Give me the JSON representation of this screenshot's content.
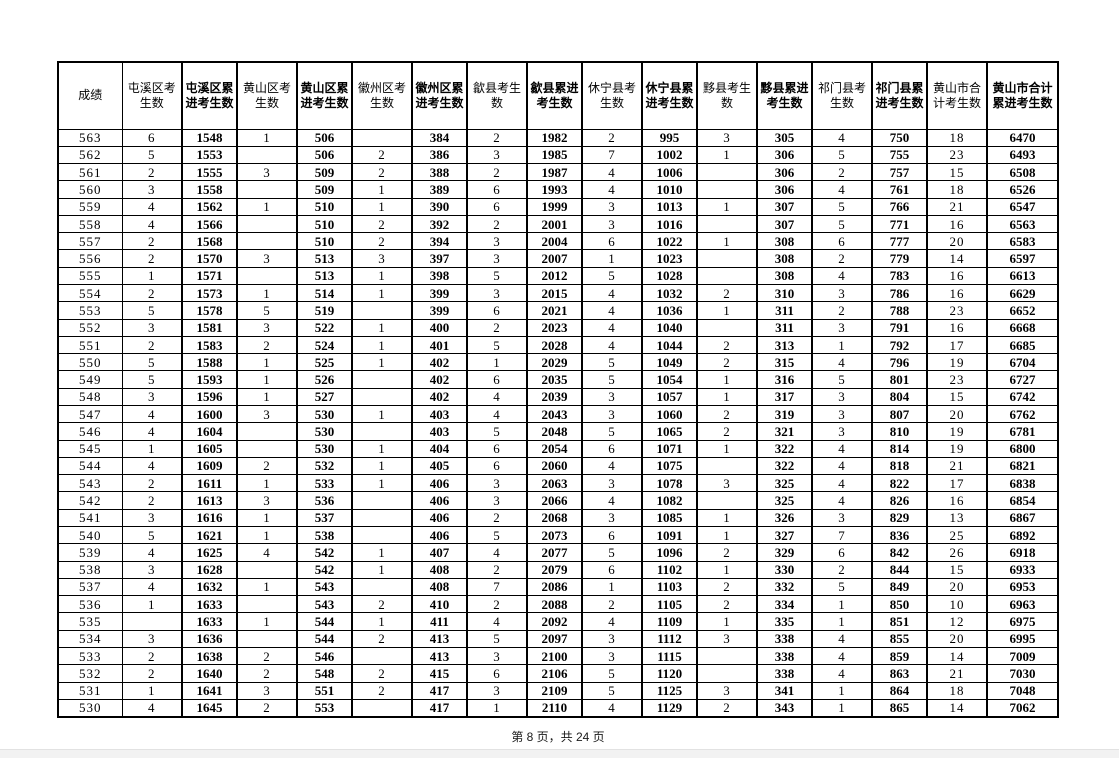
{
  "document": {
    "footer": "第 8 页，共 24 页"
  },
  "colors": {
    "page_background": "#ffffff",
    "table_border": "#000000",
    "text": "#000000",
    "bottom_strip": "#f2f2f2"
  },
  "table": {
    "columns": [
      {
        "label": "成绩",
        "emphasis": false
      },
      {
        "label": "屯溪区考生数",
        "emphasis": false
      },
      {
        "label": "屯溪区累进考生数",
        "emphasis": true
      },
      {
        "label": "黄山区考生数",
        "emphasis": false
      },
      {
        "label": "黄山区累进考生数",
        "emphasis": true
      },
      {
        "label": "徽州区考生数",
        "emphasis": false
      },
      {
        "label": "徽州区累进考生数",
        "emphasis": true
      },
      {
        "label": "歙县考生数",
        "emphasis": false
      },
      {
        "label": "歙县累进考生数",
        "emphasis": true
      },
      {
        "label": "休宁县考生数",
        "emphasis": false
      },
      {
        "label": "休宁县累进考生数",
        "emphasis": true
      },
      {
        "label": "黟县考生数",
        "emphasis": false
      },
      {
        "label": "黟县累进考生数",
        "emphasis": true
      },
      {
        "label": "祁门县考生数",
        "emphasis": false
      },
      {
        "label": "祁门县累进考生数",
        "emphasis": true
      },
      {
        "label": "黄山市合计考生数",
        "emphasis": false
      },
      {
        "label": "黄山市合计累进考生数",
        "emphasis": true
      }
    ],
    "rows": [
      [
        563,
        6,
        1548,
        1,
        506,
        "",
        384,
        2,
        1982,
        2,
        995,
        3,
        305,
        4,
        750,
        18,
        6470
      ],
      [
        562,
        5,
        1553,
        "",
        506,
        2,
        386,
        3,
        1985,
        7,
        1002,
        1,
        306,
        5,
        755,
        23,
        6493
      ],
      [
        561,
        2,
        1555,
        3,
        509,
        2,
        388,
        2,
        1987,
        4,
        1006,
        "",
        306,
        2,
        757,
        15,
        6508
      ],
      [
        560,
        3,
        1558,
        "",
        509,
        1,
        389,
        6,
        1993,
        4,
        1010,
        "",
        306,
        4,
        761,
        18,
        6526
      ],
      [
        559,
        4,
        1562,
        1,
        510,
        1,
        390,
        6,
        1999,
        3,
        1013,
        1,
        307,
        5,
        766,
        21,
        6547
      ],
      [
        558,
        4,
        1566,
        "",
        510,
        2,
        392,
        2,
        2001,
        3,
        1016,
        "",
        307,
        5,
        771,
        16,
        6563
      ],
      [
        557,
        2,
        1568,
        "",
        510,
        2,
        394,
        3,
        2004,
        6,
        1022,
        1,
        308,
        6,
        777,
        20,
        6583
      ],
      [
        556,
        2,
        1570,
        3,
        513,
        3,
        397,
        3,
        2007,
        1,
        1023,
        "",
        308,
        2,
        779,
        14,
        6597
      ],
      [
        555,
        1,
        1571,
        "",
        513,
        1,
        398,
        5,
        2012,
        5,
        1028,
        "",
        308,
        4,
        783,
        16,
        6613
      ],
      [
        554,
        2,
        1573,
        1,
        514,
        1,
        399,
        3,
        2015,
        4,
        1032,
        2,
        310,
        3,
        786,
        16,
        6629
      ],
      [
        553,
        5,
        1578,
        5,
        519,
        "",
        399,
        6,
        2021,
        4,
        1036,
        1,
        311,
        2,
        788,
        23,
        6652
      ],
      [
        552,
        3,
        1581,
        3,
        522,
        1,
        400,
        2,
        2023,
        4,
        1040,
        "",
        311,
        3,
        791,
        16,
        6668
      ],
      [
        551,
        2,
        1583,
        2,
        524,
        1,
        401,
        5,
        2028,
        4,
        1044,
        2,
        313,
        1,
        792,
        17,
        6685
      ],
      [
        550,
        5,
        1588,
        1,
        525,
        1,
        402,
        1,
        2029,
        5,
        1049,
        2,
        315,
        4,
        796,
        19,
        6704
      ],
      [
        549,
        5,
        1593,
        1,
        526,
        "",
        402,
        6,
        2035,
        5,
        1054,
        1,
        316,
        5,
        801,
        23,
        6727
      ],
      [
        548,
        3,
        1596,
        1,
        527,
        "",
        402,
        4,
        2039,
        3,
        1057,
        1,
        317,
        3,
        804,
        15,
        6742
      ],
      [
        547,
        4,
        1600,
        3,
        530,
        1,
        403,
        4,
        2043,
        3,
        1060,
        2,
        319,
        3,
        807,
        20,
        6762
      ],
      [
        546,
        4,
        1604,
        "",
        530,
        "",
        403,
        5,
        2048,
        5,
        1065,
        2,
        321,
        3,
        810,
        19,
        6781
      ],
      [
        545,
        1,
        1605,
        "",
        530,
        1,
        404,
        6,
        2054,
        6,
        1071,
        1,
        322,
        4,
        814,
        19,
        6800
      ],
      [
        544,
        4,
        1609,
        2,
        532,
        1,
        405,
        6,
        2060,
        4,
        1075,
        "",
        322,
        4,
        818,
        21,
        6821
      ],
      [
        543,
        2,
        1611,
        1,
        533,
        1,
        406,
        3,
        2063,
        3,
        1078,
        3,
        325,
        4,
        822,
        17,
        6838
      ],
      [
        542,
        2,
        1613,
        3,
        536,
        "",
        406,
        3,
        2066,
        4,
        1082,
        "",
        325,
        4,
        826,
        16,
        6854
      ],
      [
        541,
        3,
        1616,
        1,
        537,
        "",
        406,
        2,
        2068,
        3,
        1085,
        1,
        326,
        3,
        829,
        13,
        6867
      ],
      [
        540,
        5,
        1621,
        1,
        538,
        "",
        406,
        5,
        2073,
        6,
        1091,
        1,
        327,
        7,
        836,
        25,
        6892
      ],
      [
        539,
        4,
        1625,
        4,
        542,
        1,
        407,
        4,
        2077,
        5,
        1096,
        2,
        329,
        6,
        842,
        26,
        6918
      ],
      [
        538,
        3,
        1628,
        "",
        542,
        1,
        408,
        2,
        2079,
        6,
        1102,
        1,
        330,
        2,
        844,
        15,
        6933
      ],
      [
        537,
        4,
        1632,
        1,
        543,
        "",
        408,
        7,
        2086,
        1,
        1103,
        2,
        332,
        5,
        849,
        20,
        6953
      ],
      [
        536,
        1,
        1633,
        "",
        543,
        2,
        410,
        2,
        2088,
        2,
        1105,
        2,
        334,
        1,
        850,
        10,
        6963
      ],
      [
        535,
        "",
        1633,
        1,
        544,
        1,
        411,
        4,
        2092,
        4,
        1109,
        1,
        335,
        1,
        851,
        12,
        6975
      ],
      [
        534,
        3,
        1636,
        "",
        544,
        2,
        413,
        5,
        2097,
        3,
        1112,
        3,
        338,
        4,
        855,
        20,
        6995
      ],
      [
        533,
        2,
        1638,
        2,
        546,
        "",
        413,
        3,
        2100,
        3,
        1115,
        "",
        338,
        4,
        859,
        14,
        7009
      ],
      [
        532,
        2,
        1640,
        2,
        548,
        2,
        415,
        6,
        2106,
        5,
        1120,
        "",
        338,
        4,
        863,
        21,
        7030
      ],
      [
        531,
        1,
        1641,
        3,
        551,
        2,
        417,
        3,
        2109,
        5,
        1125,
        3,
        341,
        1,
        864,
        18,
        7048
      ],
      [
        530,
        4,
        1645,
        2,
        553,
        "",
        417,
        1,
        2110,
        4,
        1129,
        2,
        343,
        1,
        865,
        14,
        7062
      ]
    ]
  }
}
